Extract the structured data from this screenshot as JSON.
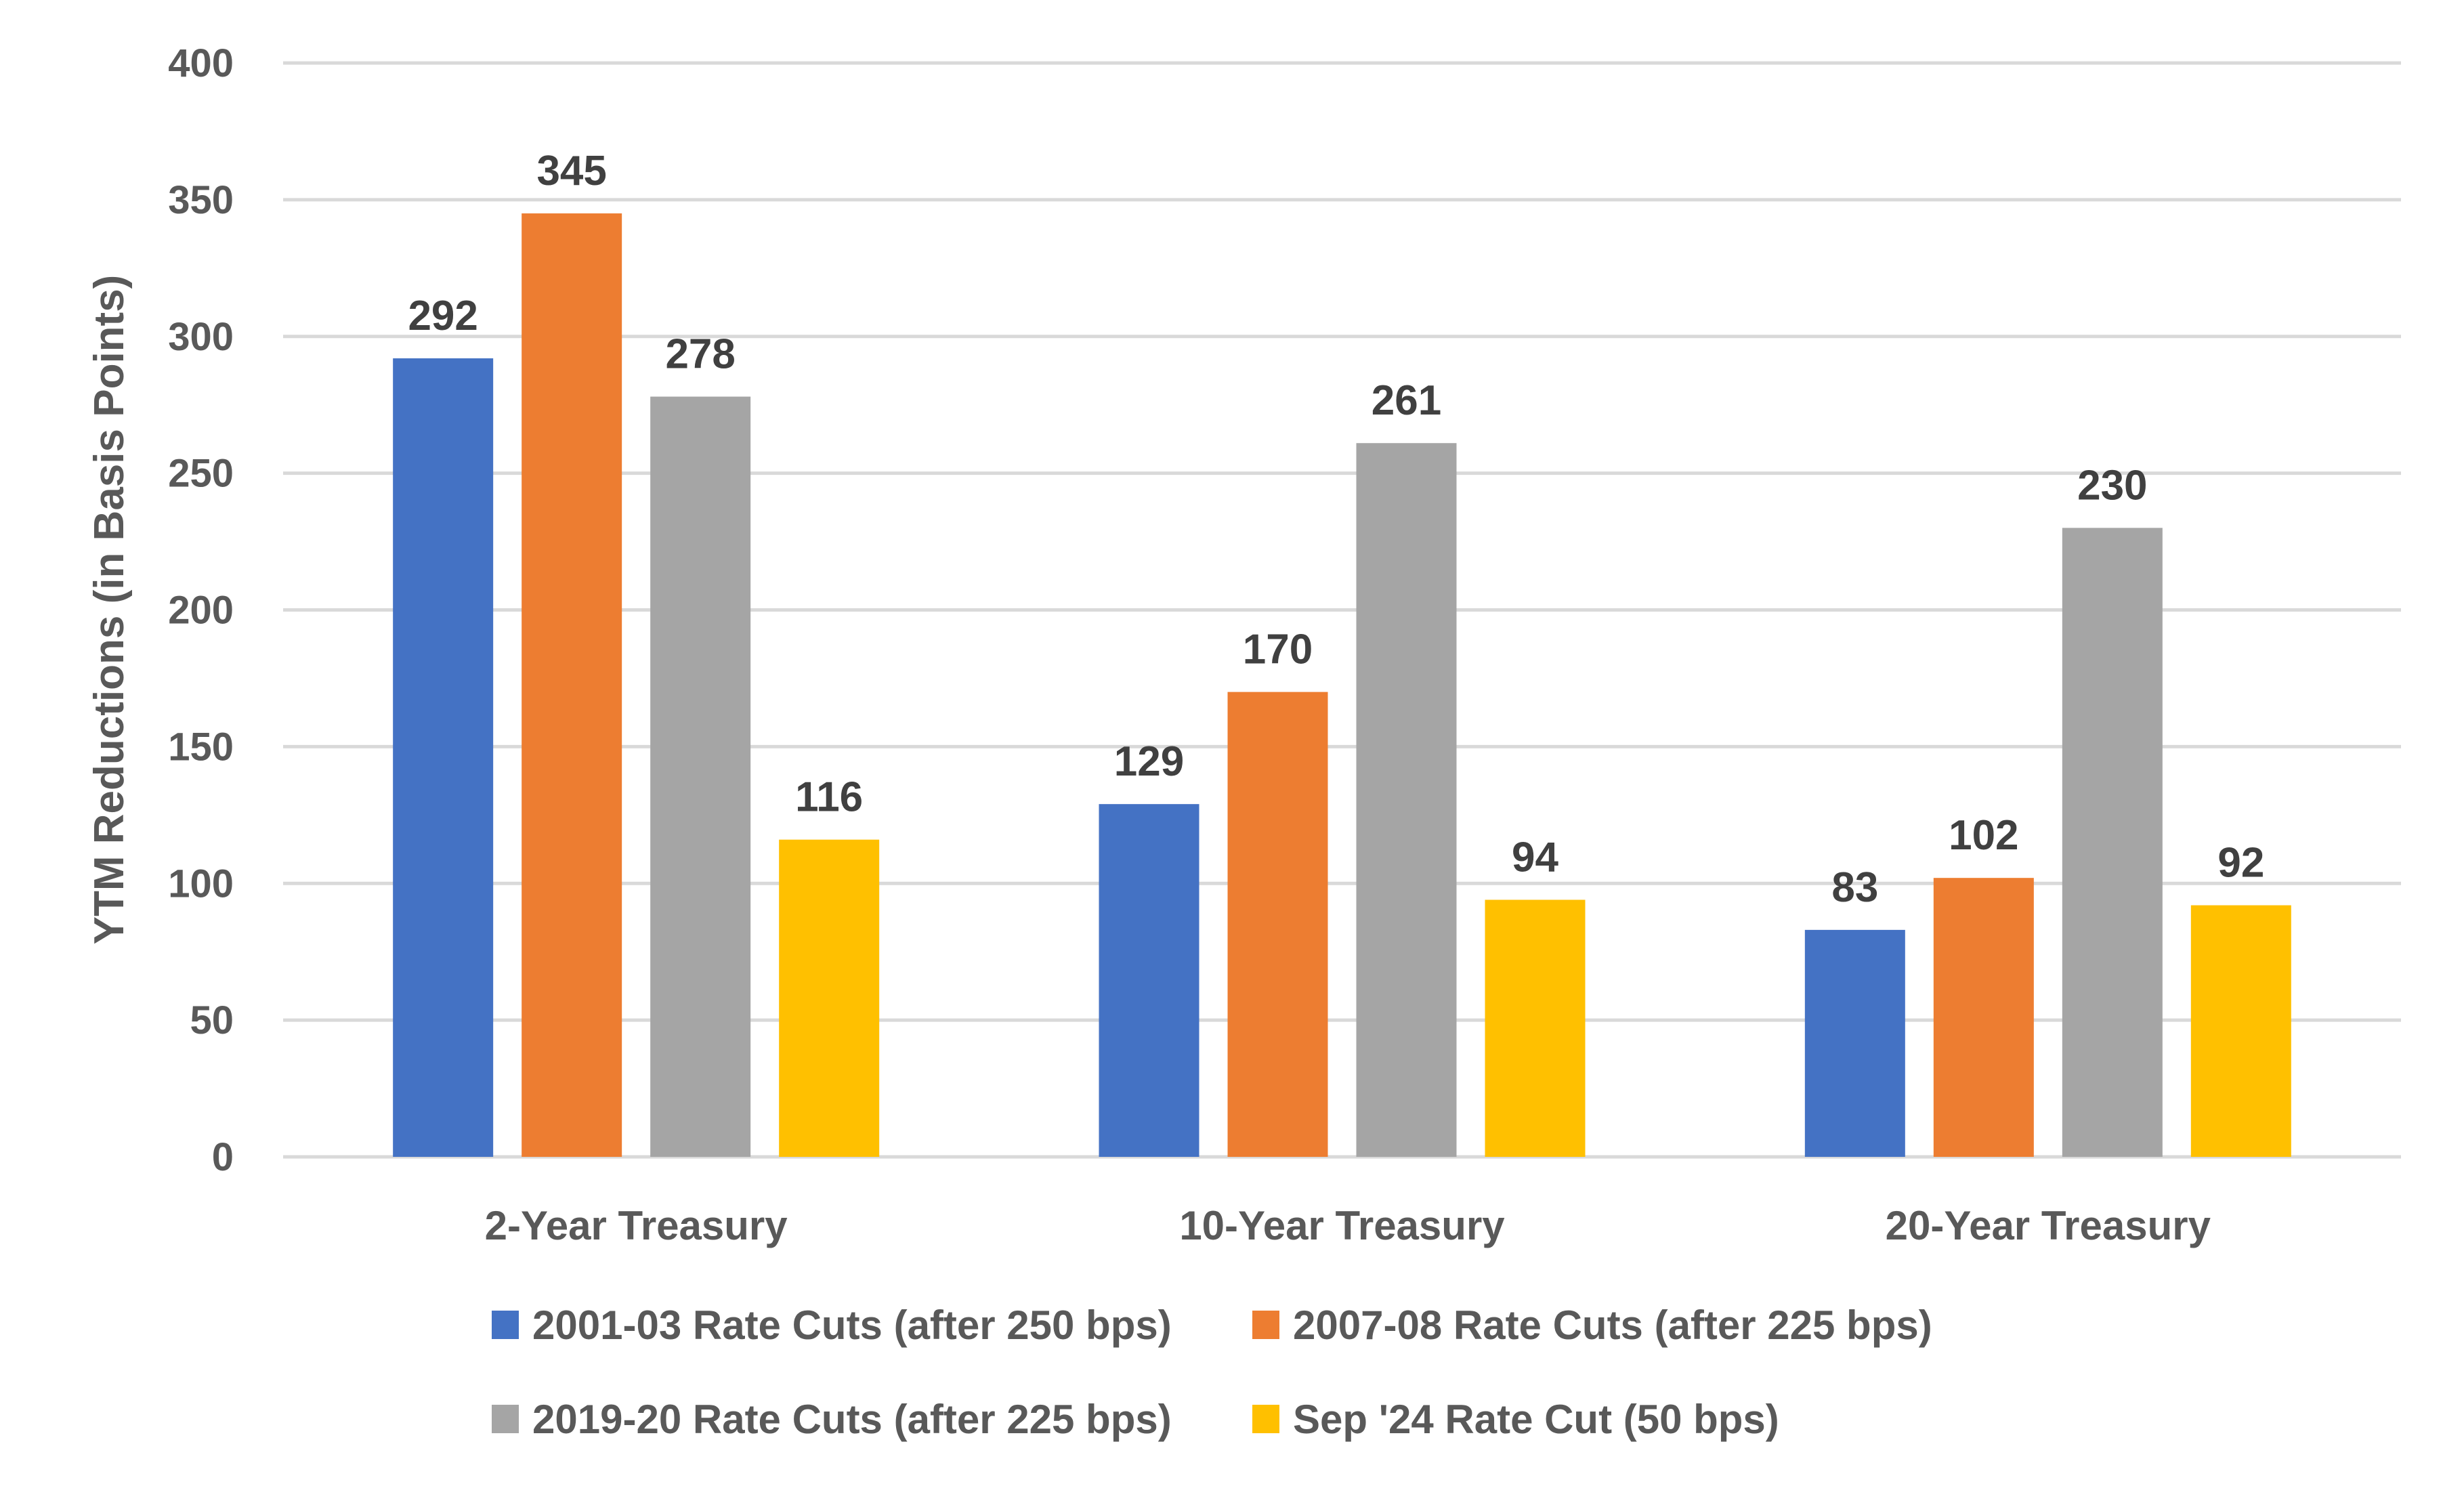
{
  "chart_data": {
    "type": "bar",
    "title": "",
    "xlabel": "",
    "ylabel": "YTM Reductions (in Basis Points)",
    "ylim": [
      0,
      400
    ],
    "yticks": [
      0,
      50,
      100,
      150,
      200,
      250,
      300,
      350,
      400
    ],
    "grid": true,
    "legend_position": "bottom",
    "categories": [
      "2-Year Treasury",
      "10-Year Treasury",
      "20-Year Treasury"
    ],
    "series": [
      {
        "name": "2001-03 Rate Cuts (after 250 bps)",
        "color": "#4472C4",
        "values": [
          292,
          129,
          83
        ]
      },
      {
        "name": "2007-08 Rate Cuts (after 225 bps)",
        "color": "#ED7D31",
        "values": [
          345,
          170,
          102
        ]
      },
      {
        "name": "2019-20 Rate Cuts (after 225 bps)",
        "color": "#A5A5A5",
        "values": [
          278,
          261,
          230
        ]
      },
      {
        "name": "Sep '24 Rate Cut (50 bps)",
        "color": "#FFC000",
        "values": [
          116,
          94,
          92
        ]
      }
    ]
  }
}
